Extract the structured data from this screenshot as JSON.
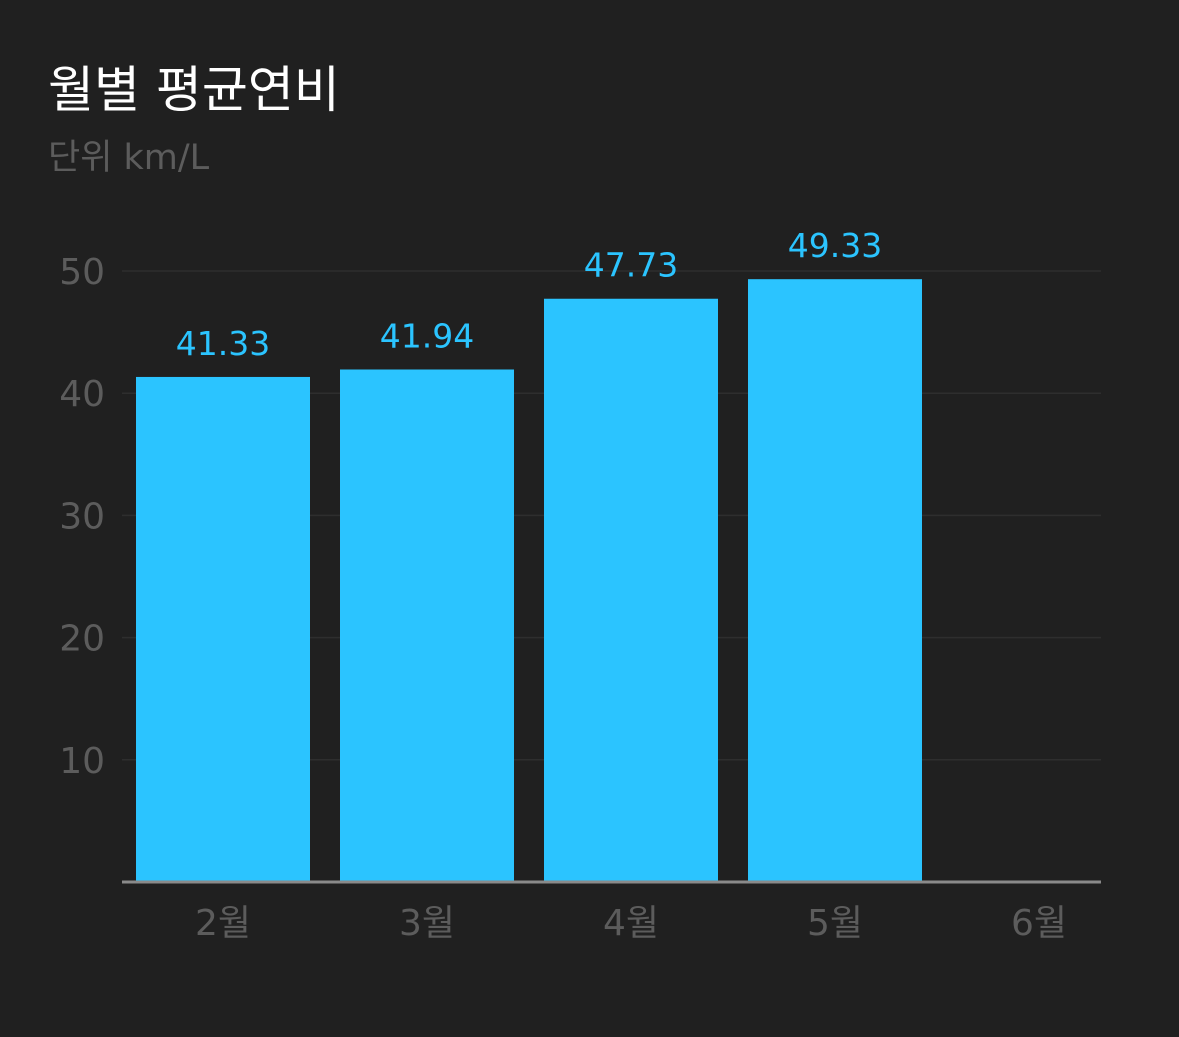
{
  "header": {
    "title": "월별 평균연비",
    "subtitle": "단위 km/L"
  },
  "colors": {
    "background": "#202020",
    "bar": "#2BC4FF",
    "value_label": "#2BC4FF",
    "gridline": "#2E2E2E",
    "baseline": "#8A8A8A",
    "tick_label": "#5C5C5C",
    "title": "#FFFFFF"
  },
  "chart_data": {
    "type": "bar",
    "title": "월별 평균연비",
    "subtitle": "단위 km/L",
    "xlabel": "",
    "ylabel": "",
    "categories": [
      "2월",
      "3월",
      "4월",
      "5월",
      "6월"
    ],
    "values": [
      41.33,
      41.94,
      47.73,
      49.33,
      null
    ],
    "value_labels": [
      "41.33",
      "41.94",
      "47.73",
      "49.33",
      ""
    ],
    "yticks": [
      "10",
      "20",
      "30",
      "40",
      "50"
    ],
    "ylim": [
      0,
      50
    ],
    "grid": true,
    "legend": "none"
  }
}
